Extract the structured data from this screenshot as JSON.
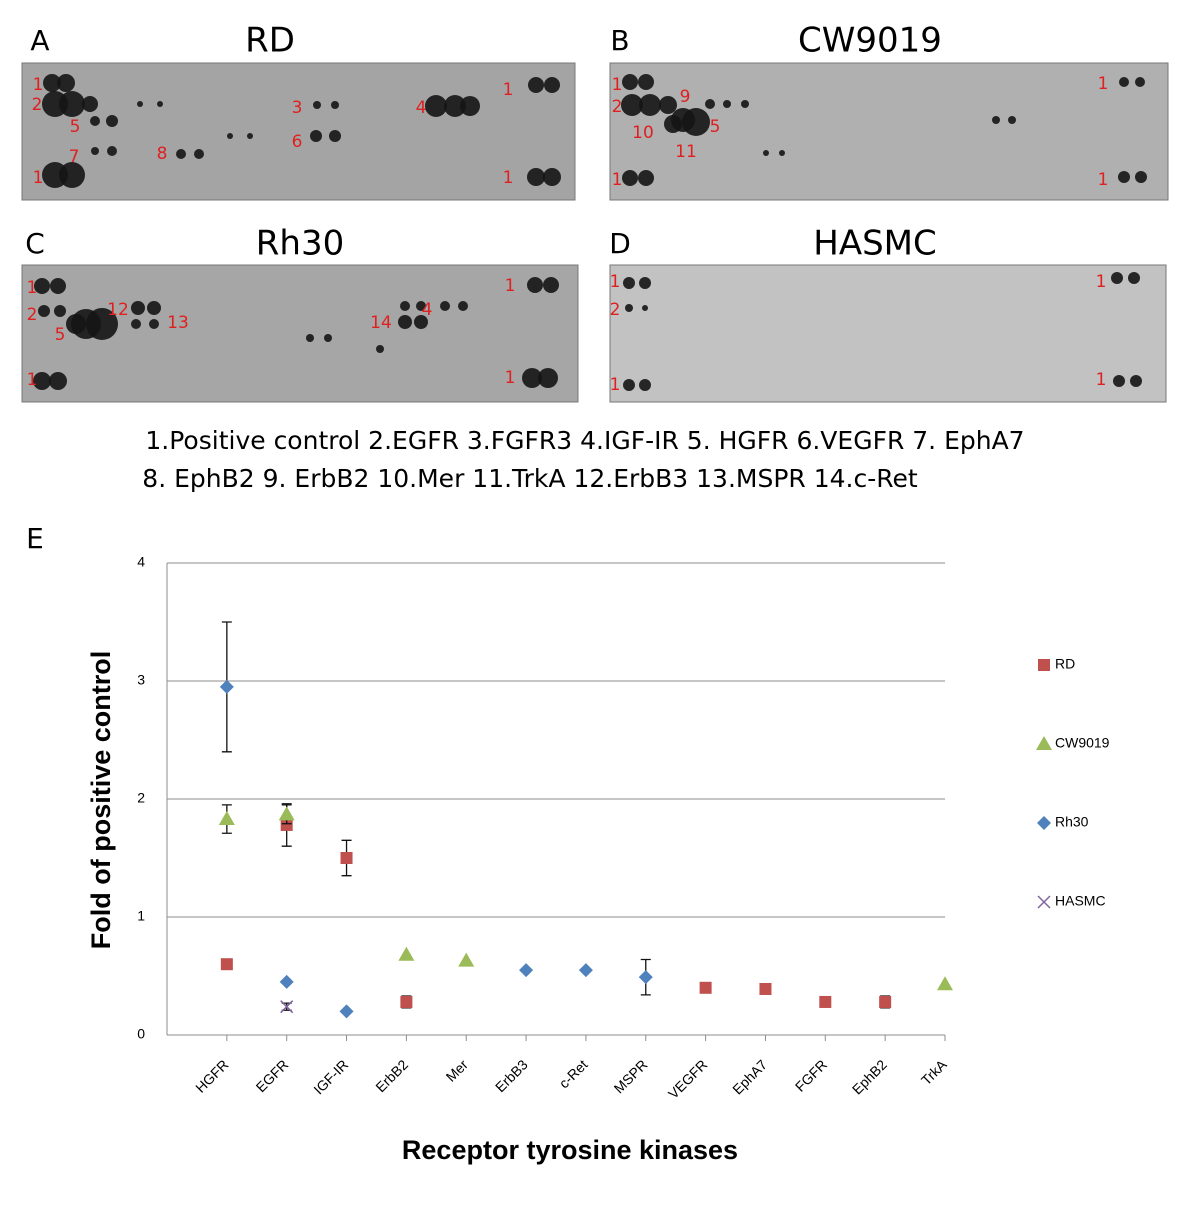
{
  "panels": [
    {
      "letter": "A",
      "title": "RD",
      "spots": [
        "1",
        "2",
        "5",
        "7",
        "8",
        "3",
        "6",
        "4",
        "1",
        "1",
        "1"
      ]
    },
    {
      "letter": "B",
      "title": "CW9019",
      "spots": [
        "1",
        "9",
        "2",
        "10",
        "5",
        "11",
        "1",
        "1",
        "1"
      ]
    },
    {
      "letter": "C",
      "title": "Rh30",
      "spots": [
        "1",
        "2",
        "12",
        "5",
        "13",
        "14",
        "4",
        "1",
        "1",
        "1"
      ]
    },
    {
      "letter": "D",
      "title": "HASMC",
      "spots": [
        "1",
        "2",
        "1",
        "1",
        "1"
      ]
    }
  ],
  "caption": [
    "1.Positive control 2.EGFR 3.FGFR3 4.IGF-IR 5. HGFR 6.VEGFR 7. EphA7",
    "8. EphB2 9. ErbB2 10.Mer 11.TrkA 12.ErbB3 13.MSPR 14.c-Ret"
  ],
  "chart_panel": "E",
  "chart_data": {
    "type": "scatter",
    "x_label": "Receptor tyrosine kinases",
    "y_label": "Fold of positive control",
    "categories": [
      "HGFR",
      "EGFR",
      "IGF-IR",
      "ErbB2",
      "Mer",
      "ErbB3",
      "c-Ret",
      "MSPR",
      "VEGFR",
      "EphA7",
      "FGFR",
      "EphB2",
      "TrkA"
    ],
    "ylim": [
      0,
      4
    ],
    "yticks": [
      0,
      1,
      2,
      3,
      4
    ],
    "grid": true,
    "series": [
      {
        "name": "RD",
        "color": "#c0504d",
        "marker": "square",
        "values": [
          0.6,
          1.78,
          1.5,
          0.28,
          null,
          null,
          null,
          null,
          0.4,
          0.39,
          0.28,
          0.28,
          null
        ],
        "errors": [
          null,
          0.18,
          0.15,
          0.05,
          null,
          null,
          null,
          null,
          0.03,
          null,
          null,
          0.05,
          null
        ]
      },
      {
        "name": "CW9019",
        "color": "#9bbb59",
        "marker": "triangle",
        "values": [
          1.83,
          1.87,
          null,
          0.68,
          0.63,
          null,
          null,
          null,
          null,
          null,
          null,
          null,
          0.43
        ],
        "errors": [
          0.12,
          0.08,
          null,
          null,
          null,
          null,
          null,
          null,
          null,
          null,
          null,
          null,
          null
        ]
      },
      {
        "name": "Rh30",
        "color": "#4f81bd",
        "marker": "diamond",
        "values": [
          2.95,
          0.45,
          0.2,
          null,
          null,
          0.55,
          0.55,
          0.49,
          null,
          null,
          null,
          null,
          null
        ],
        "errors": [
          0.55,
          null,
          null,
          null,
          null,
          null,
          null,
          0.15,
          null,
          null,
          null,
          null,
          null
        ]
      },
      {
        "name": "HASMC",
        "color": "#8064a2",
        "marker": "x",
        "values": [
          null,
          0.24,
          null,
          null,
          null,
          null,
          null,
          null,
          null,
          null,
          null,
          null,
          null
        ],
        "errors": [
          null,
          0.03,
          null,
          null,
          null,
          null,
          null,
          null,
          null,
          null,
          null,
          null,
          null
        ]
      }
    ]
  }
}
